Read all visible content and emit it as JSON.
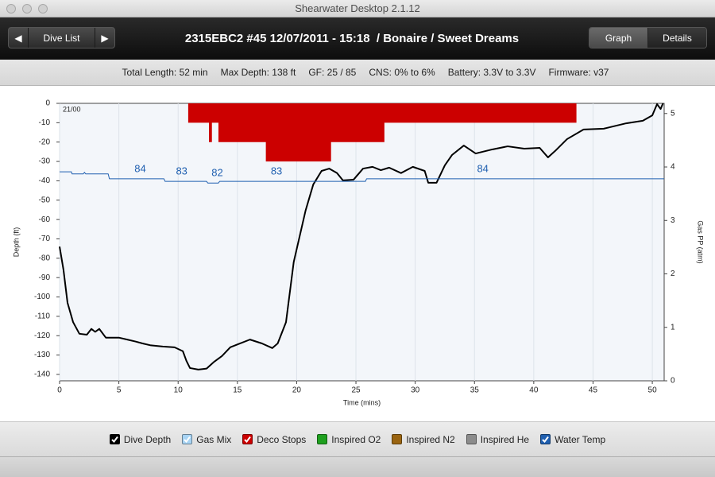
{
  "window": {
    "title": "Shearwater Desktop 2.1.12"
  },
  "toolbar": {
    "nav_label": "Dive List",
    "dive_title": "2315EBC2 #45 12/07/2011 - 15:18  / Bonaire / Sweet Dreams",
    "tabs": [
      "Graph",
      "Details"
    ]
  },
  "summary": {
    "items": [
      "Total Length: 52 min",
      "Max Depth: 138 ft",
      "GF: 25 / 85",
      "CNS: 0% to 6%",
      "Battery: 3.3V to 3.3V",
      "Firmware: v37"
    ]
  },
  "chart_data": {
    "type": "line",
    "xlabel": "Time (mins)",
    "ylabel": "Depth (ft)",
    "y2label": "Gas PP (atm)",
    "xlim": [
      0,
      51
    ],
    "xticks": [
      0,
      5,
      10,
      15,
      20,
      25,
      30,
      35,
      40,
      45,
      50
    ],
    "ylim": [
      -143.3,
      0
    ],
    "yticks": [
      0,
      -10,
      -20,
      -30,
      -40,
      -50,
      -60,
      -70,
      -80,
      -90,
      -100,
      -110,
      -120,
      -130,
      -140
    ],
    "y2lim": [
      0,
      5.19
    ],
    "y2ticks": [
      0,
      1,
      2,
      3,
      4,
      5
    ],
    "grid": true,
    "series": [
      {
        "name": "Dive Depth",
        "color": "#000000",
        "checked": true,
        "style": "line",
        "x": [
          0,
          0.33,
          0.67,
          1.14,
          1.67,
          2.3,
          2.68,
          3.0,
          3.35,
          3.9,
          4.35,
          5.0,
          5.7,
          6.4,
          7.0,
          7.7,
          8.7,
          9.7,
          10.4,
          10.7,
          11.0,
          11.7,
          12.4,
          13.05,
          13.7,
          14.4,
          15.06,
          16.06,
          17.07,
          17.94,
          18.4,
          19.1,
          19.75,
          20.75,
          21.4,
          22.1,
          22.75,
          23.4,
          23.9,
          24.8,
          25.6,
          26.4,
          27.1,
          27.8,
          28.8,
          29.8,
          30.8,
          31.1,
          31.8,
          32.5,
          33.1,
          34.1,
          35.1,
          36.5,
          37.8,
          39.2,
          40.5,
          41.2,
          41.8,
          42.8,
          44.2,
          45.9,
          47.8,
          49.2,
          50.0,
          50.4,
          50.7,
          50.9
        ],
        "values": [
          -74,
          -86,
          -103,
          -113,
          -119,
          -119.5,
          -116.5,
          -118,
          -116.5,
          -121,
          -121,
          -121,
          -122,
          -123,
          -124,
          -125,
          -125.6,
          -126,
          -128,
          -133,
          -136.7,
          -137.5,
          -137,
          -133.4,
          -130.5,
          -126,
          -124.4,
          -122,
          -124,
          -126.4,
          -124,
          -113,
          -82,
          -55.4,
          -41.9,
          -34.9,
          -33.7,
          -36,
          -39.8,
          -39.4,
          -33.7,
          -32.8,
          -34.5,
          -33.2,
          -36,
          -32.8,
          -34.9,
          -41,
          -41,
          -32,
          -26.7,
          -21.8,
          -25.9,
          -23.8,
          -22.2,
          -23.4,
          -23,
          -27.9,
          -24.6,
          -18.5,
          -13.5,
          -13.1,
          -10.3,
          -9.0,
          -6.2,
          -0.4,
          -2.9,
          0
        ]
      },
      {
        "name": "Gas Mix",
        "color": "#a8d4f4",
        "checked": true,
        "annotation": "21/00"
      },
      {
        "name": "Deco Stops",
        "color": "#cc0000",
        "checked": true,
        "style": "step",
        "x": [
          10.85,
          12.6,
          12.85,
          13.4,
          17.4,
          22.9,
          27.4,
          43.6
        ],
        "values": [
          -10,
          -20,
          -10,
          -20,
          -30,
          -20,
          -10,
          -10
        ]
      },
      {
        "name": "Inspired O2",
        "color": "#1fa01f",
        "checked": false
      },
      {
        "name": "Inspired N2",
        "color": "#9a6410",
        "checked": false
      },
      {
        "name": "Inspired He",
        "color": "#8c8c8c",
        "checked": false
      },
      {
        "name": "Water Temp",
        "color": "#1f5fb0",
        "checked": true,
        "style": "line",
        "axis": "y2",
        "x": [
          0,
          1.0,
          1.05,
          2.0,
          2.1,
          2.2,
          4.1,
          4.2,
          8.8,
          8.9,
          12.4,
          12.5,
          13.4,
          13.5,
          25.8,
          25.9,
          51
        ],
        "values": [
          3.91,
          3.91,
          3.87,
          3.87,
          3.9,
          3.87,
          3.87,
          3.78,
          3.78,
          3.73,
          3.73,
          3.7,
          3.7,
          3.73,
          3.73,
          3.78,
          3.78
        ],
        "label_x": [
          6.8,
          10.3,
          13.3,
          18.3,
          35.7
        ],
        "labels": [
          84,
          83,
          82,
          83,
          84
        ]
      }
    ]
  }
}
